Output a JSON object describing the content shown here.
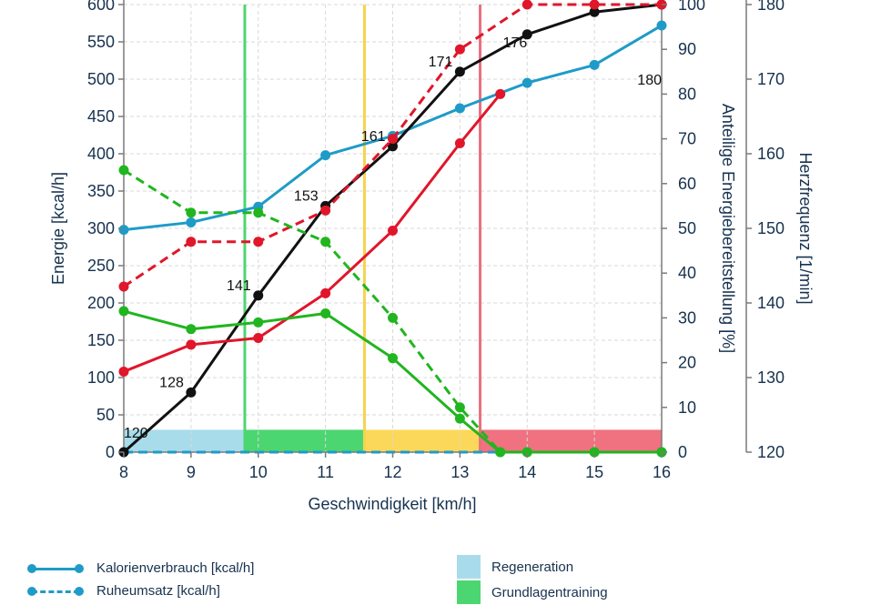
{
  "chart_data": {
    "type": "line",
    "xlabel": "Geschwindigkeit [km/h]",
    "ylabel_left": "Energie [kcal/h]",
    "ylabel_right1": "Anteilige Energiebereitstellung [%]",
    "ylabel_right2": "Herzfrequenz [1/min]",
    "xlim": [
      8,
      16
    ],
    "ylim_left": [
      0,
      600
    ],
    "ylim_right1": [
      0,
      100
    ],
    "ylim_right2": [
      120,
      180
    ],
    "x_ticks": [
      "8",
      "9",
      "10",
      "11",
      "12",
      "13",
      "14",
      "15",
      "16"
    ],
    "y_left_ticks": [
      "0",
      "50",
      "100",
      "150",
      "200",
      "250",
      "300",
      "350",
      "400",
      "450",
      "500",
      "550",
      "600"
    ],
    "y_right1_ticks": [
      "0",
      "10",
      "20",
      "30",
      "40",
      "50",
      "60",
      "70",
      "80",
      "90",
      "100"
    ],
    "y_right2_ticks": [
      "120",
      "130",
      "140",
      "150",
      "160",
      "170",
      "180"
    ],
    "grid": true,
    "zones": [
      {
        "name": "Regeneration",
        "x_start": 8,
        "x_end": 9.8,
        "color": "#a8dcea"
      },
      {
        "name": "Grundlagentraining",
        "x_start": 9.8,
        "x_end": 11.58,
        "color": "#4cd671",
        "boundary_color": "#4cd671"
      },
      {
        "name": "",
        "x_start": 11.58,
        "x_end": 13.3,
        "color": "#fcd85a",
        "boundary_color": "#f6d44e"
      },
      {
        "name": "",
        "x_start": 13.3,
        "x_end": 16,
        "color": "#f07180",
        "boundary_color": "#e9707e"
      }
    ],
    "zone_band_height_kcal": 30,
    "series": [
      {
        "name": "Kalorienverbrauch [kcal/h]",
        "axis": "left",
        "style": "solid",
        "color": "#1f9bc7",
        "x": [
          8,
          9,
          10,
          11,
          12,
          13,
          14,
          15,
          16
        ],
        "y": [
          298,
          308,
          329,
          398,
          424,
          461,
          495,
          519,
          572
        ]
      },
      {
        "name": "Ruheumsatz [kcal/h]",
        "axis": "left",
        "style": "dashed",
        "color": "#1f9bc7",
        "x": [
          8,
          16
        ],
        "y": [
          0,
          0
        ]
      },
      {
        "axis": "left",
        "style": "solid",
        "color": "#111111",
        "x": [
          8,
          9,
          10,
          11,
          12,
          13,
          14,
          15,
          16
        ],
        "y": [
          0,
          80,
          210,
          330,
          410,
          510,
          560,
          590,
          600
        ]
      },
      {
        "axis": "right1",
        "style": "solid",
        "color": "#e0162b",
        "x": [
          8,
          9,
          10,
          11,
          12,
          13,
          13.6,
          14,
          15,
          16
        ],
        "y": [
          18,
          24,
          25.5,
          35.5,
          49.5,
          69,
          80,
          null,
          null,
          null
        ]
      },
      {
        "axis": "right1",
        "style": "dashed",
        "color": "#e0162b",
        "x": [
          8,
          9,
          10,
          11,
          12,
          13,
          14,
          15,
          16
        ],
        "y": [
          37,
          47,
          47,
          54,
          70,
          90,
          100,
          100,
          100
        ]
      },
      {
        "axis": "right1",
        "style": "solid",
        "color": "#21b51f",
        "x": [
          8,
          9,
          10,
          11,
          12,
          13,
          13.6,
          14,
          15,
          16
        ],
        "y": [
          31.5,
          27.5,
          29,
          31,
          21,
          7.5,
          0,
          0,
          0,
          0
        ]
      },
      {
        "axis": "right1",
        "style": "dashed",
        "color": "#21b51f",
        "x": [
          8,
          9,
          10,
          11,
          12,
          13,
          13.6,
          14,
          15,
          16
        ],
        "y": [
          63,
          53.5,
          53.5,
          47,
          30,
          10,
          0,
          0,
          0,
          0
        ]
      }
    ],
    "heart_rate_labels": [
      {
        "x": 8,
        "value": "120"
      },
      {
        "x": 9,
        "value": "128"
      },
      {
        "x": 10,
        "value": "141"
      },
      {
        "x": 11,
        "value": "153"
      },
      {
        "x": 12,
        "value": "161"
      },
      {
        "x": 13,
        "value": "171"
      },
      {
        "x": 14,
        "value": "176"
      },
      {
        "x": 16,
        "value": "180"
      }
    ]
  },
  "legend": {
    "items": [
      {
        "label": "Kalorienverbrauch [kcal/h]",
        "kind": "line",
        "style": "solid",
        "color": "#1f9bc7"
      },
      {
        "label": "Ruheumsatz [kcal/h]",
        "kind": "line",
        "style": "dashed",
        "color": "#1f9bc7"
      },
      {
        "label": "Regeneration",
        "kind": "swatch",
        "color": "#a8dcea"
      },
      {
        "label": "Grundlagentraining",
        "kind": "swatch",
        "color": "#4cd671"
      }
    ]
  },
  "colors": {
    "axis_text": "#16324f",
    "axis_line": "#7a7a7a",
    "grid": "#d9d9d9"
  }
}
